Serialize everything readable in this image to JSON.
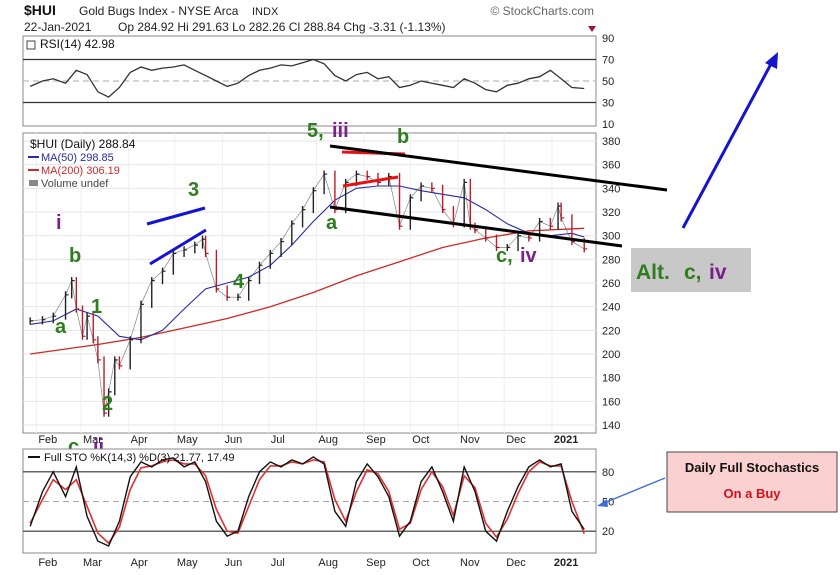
{
  "header": {
    "symbol": "$HUI",
    "name": "Gold Bugs Index - NYSE Arca",
    "exchange": "INDX",
    "source": "© StockCharts.com",
    "date": "22-Jan-2021",
    "ohlc": "Op 284.92  Hi 291.63  Lo 282.26  Cl 288.84  Chg -3.31 (-1.13%)"
  },
  "chart_data": [
    {
      "type": "line",
      "title": "RSI(14) 42.98",
      "ylim": [
        10,
        90
      ],
      "y_ticks": [
        10,
        30,
        50,
        70,
        90
      ],
      "reference_lines": [
        30,
        50,
        70
      ],
      "x": [
        "2020-01-28",
        "2020-02-05",
        "2020-02-12",
        "2020-02-20",
        "2020-02-27",
        "2020-03-05",
        "2020-03-12",
        "2020-03-19",
        "2020-03-26",
        "2020-04-02",
        "2020-04-09",
        "2020-04-16",
        "2020-04-23",
        "2020-04-30",
        "2020-05-07",
        "2020-05-14",
        "2020-05-21",
        "2020-05-28",
        "2020-06-04",
        "2020-06-11",
        "2020-06-18",
        "2020-06-25",
        "2020-07-02",
        "2020-07-09",
        "2020-07-16",
        "2020-07-23",
        "2020-07-30",
        "2020-08-06",
        "2020-08-13",
        "2020-08-20",
        "2020-08-27",
        "2020-09-03",
        "2020-09-10",
        "2020-09-17",
        "2020-09-24",
        "2020-10-01",
        "2020-10-08",
        "2020-10-15",
        "2020-10-22",
        "2020-10-29",
        "2020-11-05",
        "2020-11-12",
        "2020-11-19",
        "2020-11-26",
        "2020-12-03",
        "2020-12-10",
        "2020-12-17",
        "2020-12-24",
        "2020-12-31",
        "2021-01-07",
        "2021-01-14",
        "2021-01-22"
      ],
      "values": [
        45,
        50,
        52,
        48,
        60,
        56,
        40,
        35,
        44,
        58,
        63,
        60,
        62,
        63,
        65,
        60,
        55,
        50,
        45,
        48,
        55,
        60,
        62,
        65,
        64,
        67,
        70,
        66,
        55,
        50,
        56,
        58,
        52,
        54,
        44,
        46,
        50,
        48,
        46,
        44,
        52,
        48,
        42,
        40,
        46,
        48,
        52,
        54,
        60,
        52,
        44,
        43
      ]
    },
    {
      "type": "line",
      "title": "$HUI (Daily) 288.84",
      "ylim": [
        140,
        380
      ],
      "y_ticks": [
        140,
        160,
        180,
        200,
        220,
        240,
        260,
        280,
        300,
        320,
        340,
        360,
        380
      ],
      "x_labels": [
        "Feb",
        "Mar",
        "Apr",
        "May",
        "Jun",
        "Jul",
        "Aug",
        "Sep",
        "Oct",
        "Nov",
        "Dec",
        "2021"
      ],
      "series": [
        {
          "name": "$HUI (Daily) 288.84",
          "color": "#222222",
          "x": [
            "2020-01-28",
            "2020-02-05",
            "2020-02-12",
            "2020-02-20",
            "2020-02-24",
            "2020-02-27",
            "2020-03-02",
            "2020-03-05",
            "2020-03-09",
            "2020-03-12",
            "2020-03-16",
            "2020-03-19",
            "2020-03-23",
            "2020-03-26",
            "2020-04-02",
            "2020-04-09",
            "2020-04-16",
            "2020-04-23",
            "2020-04-30",
            "2020-05-07",
            "2020-05-14",
            "2020-05-19",
            "2020-05-21",
            "2020-05-28",
            "2020-06-04",
            "2020-06-11",
            "2020-06-18",
            "2020-06-25",
            "2020-07-02",
            "2020-07-09",
            "2020-07-16",
            "2020-07-23",
            "2020-07-30",
            "2020-08-06",
            "2020-08-13",
            "2020-08-20",
            "2020-08-27",
            "2020-09-03",
            "2020-09-10",
            "2020-09-17",
            "2020-09-24",
            "2020-10-01",
            "2020-10-08",
            "2020-10-15",
            "2020-10-22",
            "2020-10-29",
            "2020-11-05",
            "2020-11-09",
            "2020-11-12",
            "2020-11-19",
            "2020-11-26",
            "2020-12-03",
            "2020-12-10",
            "2020-12-17",
            "2020-12-24",
            "2020-12-31",
            "2021-01-05",
            "2021-01-07",
            "2021-01-14",
            "2021-01-22"
          ],
          "values": [
            228,
            229,
            232,
            250,
            262,
            238,
            215,
            232,
            212,
            195,
            150,
            168,
            195,
            190,
            212,
            242,
            262,
            270,
            285,
            288,
            292,
            297,
            285,
            255,
            248,
            248,
            262,
            275,
            285,
            295,
            310,
            322,
            338,
            352,
            322,
            345,
            352,
            350,
            345,
            350,
            308,
            332,
            342,
            340,
            322,
            310,
            345,
            308,
            305,
            298,
            290,
            290,
            300,
            298,
            312,
            308,
            325,
            315,
            295,
            288.84
          ]
        },
        {
          "name": "MA(50) 298.85",
          "color": "#2a2aa8",
          "x": [
            "2020-01-28",
            "2020-02-12",
            "2020-02-27",
            "2020-03-12",
            "2020-03-26",
            "2020-04-09",
            "2020-04-23",
            "2020-05-07",
            "2020-05-21",
            "2020-06-04",
            "2020-06-18",
            "2020-07-02",
            "2020-07-16",
            "2020-07-30",
            "2020-08-13",
            "2020-08-27",
            "2020-09-10",
            "2020-09-24",
            "2020-10-08",
            "2020-10-22",
            "2020-11-05",
            "2020-11-19",
            "2020-12-03",
            "2020-12-17",
            "2020-12-31",
            "2021-01-14",
            "2021-01-22"
          ],
          "values": [
            225,
            228,
            238,
            232,
            215,
            212,
            220,
            238,
            255,
            260,
            265,
            275,
            292,
            312,
            330,
            340,
            342,
            342,
            338,
            335,
            332,
            322,
            310,
            302,
            300,
            302,
            298.85
          ]
        },
        {
          "name": "MA(200) 306.19",
          "color": "#cc2a2a",
          "x": [
            "2020-01-28",
            "2020-03-12",
            "2020-04-09",
            "2020-05-07",
            "2020-06-04",
            "2020-07-02",
            "2020-07-30",
            "2020-08-27",
            "2020-09-24",
            "2020-10-22",
            "2020-11-19",
            "2020-12-17",
            "2021-01-22"
          ],
          "values": [
            200,
            208,
            214,
            222,
            230,
            240,
            252,
            266,
            278,
            290,
            298,
            304,
            306.19
          ]
        }
      ],
      "legend": [
        "$HUI (Daily) 288.84",
        "MA(50) 298.85",
        "MA(200) 306.19",
        "Volume undef"
      ],
      "annotations": {
        "wave_i": "i",
        "wave_b1": "b",
        "wave_a1": "a",
        "wave_1": "1",
        "wave_2": "2",
        "wave_c": "c,",
        "wave_ii": "ii",
        "wave_3": "3",
        "wave_4": "4",
        "wave_5": "5,",
        "wave_iii": "iii",
        "wave_b2": "b",
        "wave_a2": "a",
        "wave_c_iv_c": "c,",
        "wave_c_iv_iv": "iv"
      },
      "alt_label": {
        "prefix": "Alt.",
        "c": "c,",
        "iv": "iv"
      }
    },
    {
      "type": "line",
      "title": "Full STO %K(14,3) %D(3) 21.77, 17.49",
      "ylim": [
        0,
        100
      ],
      "y_ticks": [
        20,
        50,
        80
      ],
      "reference_lines": [
        20,
        50,
        80
      ],
      "x_labels": [
        "Feb",
        "Mar",
        "Apr",
        "May",
        "Jun",
        "Jul",
        "Aug",
        "Sep",
        "Oct",
        "Nov",
        "Dec",
        "2021"
      ],
      "x": [
        "2020-01-28",
        "2020-02-05",
        "2020-02-12",
        "2020-02-20",
        "2020-02-27",
        "2020-03-05",
        "2020-03-12",
        "2020-03-19",
        "2020-03-26",
        "2020-04-02",
        "2020-04-09",
        "2020-04-16",
        "2020-04-23",
        "2020-04-30",
        "2020-05-07",
        "2020-05-14",
        "2020-05-21",
        "2020-05-28",
        "2020-06-04",
        "2020-06-11",
        "2020-06-18",
        "2020-06-25",
        "2020-07-02",
        "2020-07-09",
        "2020-07-16",
        "2020-07-23",
        "2020-07-30",
        "2020-08-06",
        "2020-08-13",
        "2020-08-20",
        "2020-08-27",
        "2020-09-03",
        "2020-09-10",
        "2020-09-17",
        "2020-09-24",
        "2020-10-01",
        "2020-10-08",
        "2020-10-15",
        "2020-10-22",
        "2020-10-29",
        "2020-11-05",
        "2020-11-12",
        "2020-11-19",
        "2020-11-26",
        "2020-12-03",
        "2020-12-10",
        "2020-12-17",
        "2020-12-24",
        "2020-12-31",
        "2021-01-07",
        "2021-01-14",
        "2021-01-22"
      ],
      "series": [
        {
          "name": "%K(14,3)",
          "color": "#111111",
          "values": [
            25,
            60,
            80,
            55,
            85,
            35,
            10,
            5,
            30,
            75,
            90,
            85,
            92,
            94,
            85,
            90,
            70,
            30,
            15,
            20,
            55,
            80,
            90,
            85,
            92,
            88,
            95,
            88,
            40,
            25,
            70,
            88,
            75,
            55,
            15,
            30,
            70,
            85,
            60,
            30,
            85,
            60,
            20,
            10,
            40,
            65,
            85,
            92,
            85,
            88,
            40,
            21.77
          ]
        },
        {
          "name": "%D(3)",
          "color": "#e03030",
          "values": [
            28,
            52,
            72,
            62,
            72,
            45,
            18,
            8,
            24,
            62,
            84,
            86,
            90,
            92,
            88,
            88,
            76,
            42,
            20,
            18,
            45,
            72,
            86,
            86,
            90,
            88,
            92,
            90,
            52,
            30,
            60,
            82,
            78,
            60,
            22,
            28,
            62,
            80,
            65,
            36,
            76,
            64,
            28,
            14,
            32,
            58,
            80,
            90,
            86,
            86,
            50,
            17.49
          ]
        }
      ]
    }
  ],
  "callout": {
    "title": "Daily Full Stochastics",
    "subtitle": "On a Buy"
  },
  "colors": {
    "wave_green": "#2e7d1f",
    "wave_purple": "#7a1f8c",
    "line_blue": "#1414d0",
    "line_red": "#e81010"
  }
}
